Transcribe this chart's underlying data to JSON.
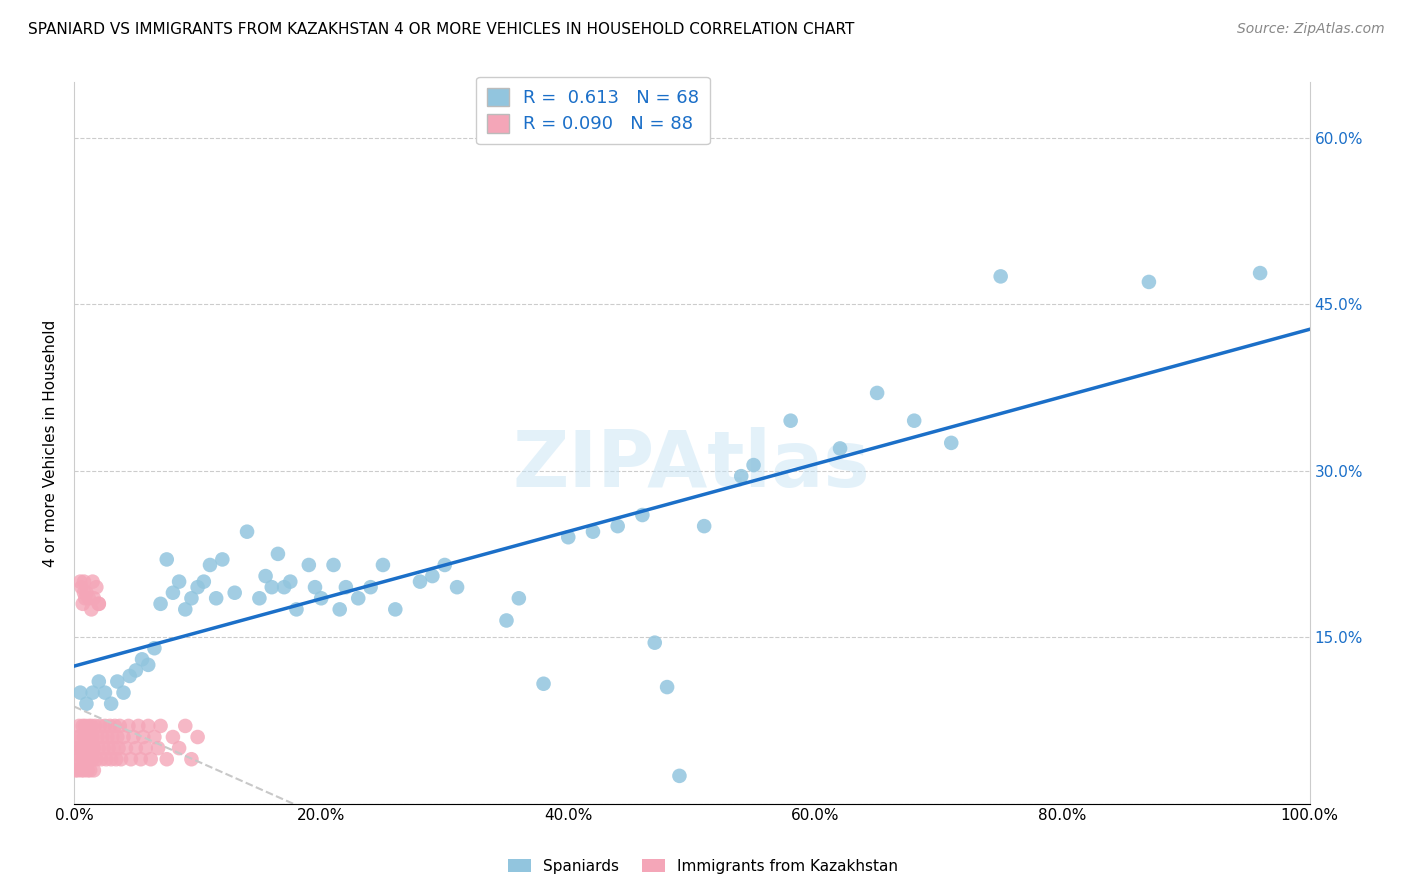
{
  "title": "SPANIARD VS IMMIGRANTS FROM KAZAKHSTAN 4 OR MORE VEHICLES IN HOUSEHOLD CORRELATION CHART",
  "source": "Source: ZipAtlas.com",
  "ylabel": "4 or more Vehicles in Household",
  "watermark": "ZIPAtlas",
  "spaniards_R": 0.613,
  "spaniards_N": 68,
  "immigrants_R": 0.09,
  "immigrants_N": 88,
  "spaniard_color": "#92C5DE",
  "immigrant_color": "#F4A6B8",
  "spaniard_line_color": "#1B6FC8",
  "immigrant_line_color": "#C8C8C8",
  "legend_label_1": "Spaniards",
  "legend_label_2": "Immigrants from Kazakhstan",
  "xlim": [
    0,
    1.0
  ],
  "ylim": [
    0,
    0.65
  ],
  "xticks": [
    0.0,
    0.2,
    0.4,
    0.6,
    0.8,
    1.0
  ],
  "xtick_labels": [
    "0.0%",
    "20.0%",
    "40.0%",
    "60.0%",
    "80.0%",
    "100.0%"
  ],
  "ytick_positions": [
    0.0,
    0.15,
    0.3,
    0.45,
    0.6
  ],
  "ytick_labels_right": [
    "",
    "15.0%",
    "30.0%",
    "45.0%",
    "60.0%"
  ],
  "spaniards_x": [
    0.005,
    0.01,
    0.015,
    0.02,
    0.025,
    0.03,
    0.035,
    0.04,
    0.045,
    0.05,
    0.055,
    0.06,
    0.065,
    0.07,
    0.075,
    0.08,
    0.085,
    0.09,
    0.095,
    0.1,
    0.105,
    0.11,
    0.115,
    0.12,
    0.13,
    0.14,
    0.15,
    0.155,
    0.16,
    0.165,
    0.17,
    0.175,
    0.18,
    0.19,
    0.195,
    0.2,
    0.21,
    0.215,
    0.22,
    0.23,
    0.24,
    0.25,
    0.26,
    0.28,
    0.29,
    0.3,
    0.31,
    0.35,
    0.36,
    0.38,
    0.4,
    0.42,
    0.44,
    0.46,
    0.47,
    0.48,
    0.49,
    0.51,
    0.54,
    0.55,
    0.58,
    0.62,
    0.65,
    0.68,
    0.71,
    0.75,
    0.87,
    0.96
  ],
  "spaniards_y": [
    0.1,
    0.09,
    0.1,
    0.11,
    0.1,
    0.09,
    0.11,
    0.1,
    0.115,
    0.12,
    0.13,
    0.125,
    0.14,
    0.18,
    0.22,
    0.19,
    0.2,
    0.175,
    0.185,
    0.195,
    0.2,
    0.215,
    0.185,
    0.22,
    0.19,
    0.245,
    0.185,
    0.205,
    0.195,
    0.225,
    0.195,
    0.2,
    0.175,
    0.215,
    0.195,
    0.185,
    0.215,
    0.175,
    0.195,
    0.185,
    0.195,
    0.215,
    0.175,
    0.2,
    0.205,
    0.215,
    0.195,
    0.165,
    0.185,
    0.108,
    0.24,
    0.245,
    0.25,
    0.26,
    0.145,
    0.105,
    0.025,
    0.25,
    0.295,
    0.305,
    0.345,
    0.32,
    0.37,
    0.345,
    0.325,
    0.475,
    0.47,
    0.478
  ],
  "immigrants_x": [
    0.001,
    0.002,
    0.002,
    0.003,
    0.003,
    0.004,
    0.004,
    0.005,
    0.005,
    0.006,
    0.006,
    0.007,
    0.007,
    0.008,
    0.008,
    0.009,
    0.009,
    0.01,
    0.01,
    0.011,
    0.011,
    0.012,
    0.012,
    0.013,
    0.013,
    0.014,
    0.014,
    0.015,
    0.015,
    0.016,
    0.016,
    0.017,
    0.018,
    0.019,
    0.02,
    0.021,
    0.022,
    0.023,
    0.024,
    0.025,
    0.026,
    0.027,
    0.028,
    0.029,
    0.03,
    0.031,
    0.032,
    0.033,
    0.034,
    0.035,
    0.036,
    0.037,
    0.038,
    0.04,
    0.042,
    0.044,
    0.046,
    0.048,
    0.05,
    0.052,
    0.054,
    0.056,
    0.058,
    0.06,
    0.062,
    0.065,
    0.068,
    0.07,
    0.075,
    0.08,
    0.085,
    0.09,
    0.095,
    0.1,
    0.006,
    0.007,
    0.008,
    0.009,
    0.01,
    0.012,
    0.014,
    0.016,
    0.018,
    0.02,
    0.015,
    0.02,
    0.005,
    0.008
  ],
  "immigrants_y": [
    0.03,
    0.05,
    0.04,
    0.06,
    0.03,
    0.05,
    0.07,
    0.04,
    0.06,
    0.03,
    0.05,
    0.07,
    0.04,
    0.06,
    0.03,
    0.05,
    0.07,
    0.04,
    0.06,
    0.03,
    0.05,
    0.07,
    0.04,
    0.06,
    0.03,
    0.05,
    0.07,
    0.04,
    0.06,
    0.03,
    0.05,
    0.07,
    0.04,
    0.06,
    0.05,
    0.07,
    0.04,
    0.06,
    0.05,
    0.07,
    0.04,
    0.06,
    0.05,
    0.07,
    0.04,
    0.06,
    0.05,
    0.07,
    0.04,
    0.06,
    0.05,
    0.07,
    0.04,
    0.06,
    0.05,
    0.07,
    0.04,
    0.06,
    0.05,
    0.07,
    0.04,
    0.06,
    0.05,
    0.07,
    0.04,
    0.06,
    0.05,
    0.07,
    0.04,
    0.06,
    0.05,
    0.07,
    0.04,
    0.06,
    0.195,
    0.18,
    0.19,
    0.185,
    0.19,
    0.185,
    0.175,
    0.185,
    0.195,
    0.18,
    0.2,
    0.18,
    0.2,
    0.2
  ]
}
